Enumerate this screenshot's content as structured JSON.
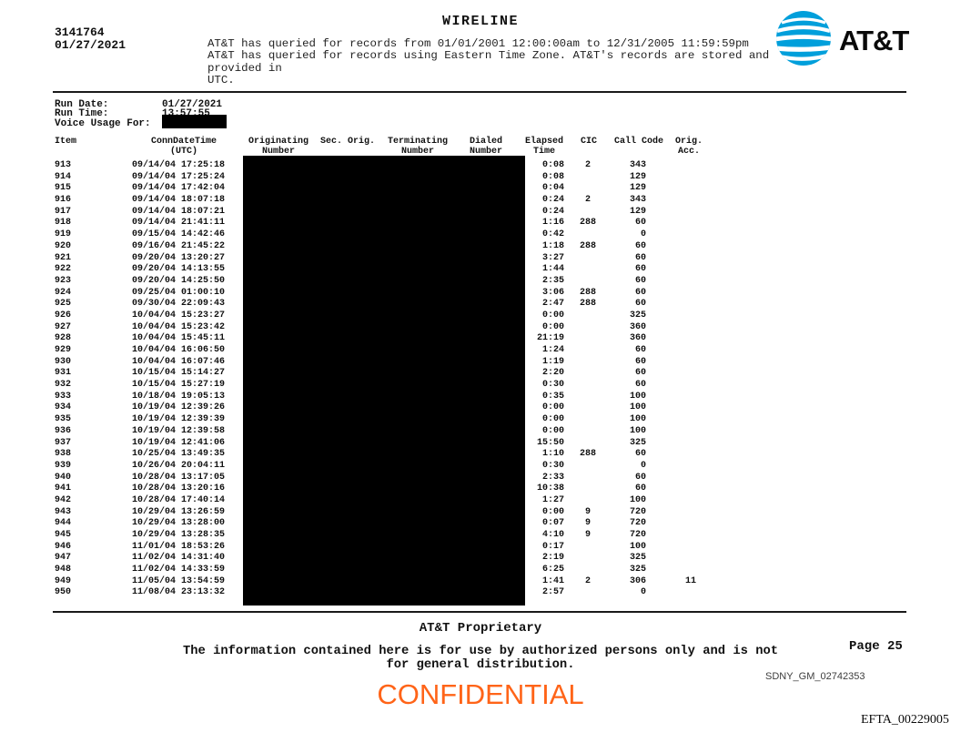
{
  "page": {
    "doc_number": "3141764",
    "doc_date": "01/27/2021",
    "title": "WIRELINE",
    "query_notice": "AT&T has queried for records from 01/01/2001 12:00:00am to 12/31/2005 11:59:59pm\nAT&T has queried for records using Eastern Time Zone. AT&T's records are stored and provided in\nUTC.",
    "logo_text": "AT&T"
  },
  "run_info": {
    "run_date_label": "Run Date:",
    "run_date": "01/27/2021",
    "run_time_label": "Run Time:",
    "run_time": "13:57:55",
    "voice_usage_label": "Voice Usage For:",
    "voice_usage_value": "[REDACTED]"
  },
  "table": {
    "headers": {
      "item": "Item",
      "conn": "ConnDateTime\n(UTC)",
      "originating": "Originating\nNumber",
      "sec_orig": "Sec. Orig.",
      "terminating": "Terminating\nNumber",
      "dialed": "Dialed\nNumber",
      "elapsed": "Elapsed\nTime",
      "cic": "CIC",
      "call_code": "Call Code",
      "orig_acc": "Orig.\nAcc."
    },
    "rows": [
      [
        "913",
        "09/14/04 17:25:18",
        "0:08",
        "2",
        "343",
        ""
      ],
      [
        "914",
        "09/14/04 17:25:24",
        "0:08",
        "",
        "129",
        ""
      ],
      [
        "915",
        "09/14/04 17:42:04",
        "0:04",
        "",
        "129",
        ""
      ],
      [
        "916",
        "09/14/04 18:07:18",
        "0:24",
        "2",
        "343",
        ""
      ],
      [
        "917",
        "09/14/04 18:07:21",
        "0:24",
        "",
        "129",
        ""
      ],
      [
        "918",
        "09/14/04 21:41:11",
        "1:16",
        "288",
        "60",
        ""
      ],
      [
        "919",
        "09/15/04 14:42:46",
        "0:42",
        "",
        "0",
        ""
      ],
      [
        "920",
        "09/16/04 21:45:22",
        "1:18",
        "288",
        "60",
        ""
      ],
      [
        "921",
        "09/20/04 13:20:27",
        "3:27",
        "",
        "60",
        ""
      ],
      [
        "922",
        "09/20/04 14:13:55",
        "1:44",
        "",
        "60",
        ""
      ],
      [
        "923",
        "09/20/04 14:25:50",
        "2:35",
        "",
        "60",
        ""
      ],
      [
        "924",
        "09/25/04 01:00:10",
        "3:06",
        "288",
        "60",
        ""
      ],
      [
        "925",
        "09/30/04 22:09:43",
        "2:47",
        "288",
        "60",
        ""
      ],
      [
        "926",
        "10/04/04 15:23:27",
        "0:00",
        "",
        "325",
        ""
      ],
      [
        "927",
        "10/04/04 15:23:42",
        "0:00",
        "",
        "360",
        ""
      ],
      [
        "928",
        "10/04/04 15:45:11",
        "21:19",
        "",
        "360",
        ""
      ],
      [
        "929",
        "10/04/04 16:06:50",
        "1:24",
        "",
        "60",
        ""
      ],
      [
        "930",
        "10/04/04 16:07:46",
        "1:19",
        "",
        "60",
        ""
      ],
      [
        "931",
        "10/15/04 15:14:27",
        "2:20",
        "",
        "60",
        ""
      ],
      [
        "932",
        "10/15/04 15:27:19",
        "0:30",
        "",
        "60",
        ""
      ],
      [
        "933",
        "10/18/04 19:05:13",
        "0:35",
        "",
        "100",
        ""
      ],
      [
        "934",
        "10/19/04 12:39:26",
        "0:00",
        "",
        "100",
        ""
      ],
      [
        "935",
        "10/19/04 12:39:39",
        "0:00",
        "",
        "100",
        ""
      ],
      [
        "936",
        "10/19/04 12:39:58",
        "0:00",
        "",
        "100",
        ""
      ],
      [
        "937",
        "10/19/04 12:41:06",
        "15:50",
        "",
        "325",
        ""
      ],
      [
        "938",
        "10/25/04 13:49:35",
        "1:10",
        "288",
        "60",
        ""
      ],
      [
        "939",
        "10/26/04 20:04:11",
        "0:30",
        "",
        "0",
        ""
      ],
      [
        "940",
        "10/28/04 13:17:05",
        "2:33",
        "",
        "60",
        ""
      ],
      [
        "941",
        "10/28/04 13:20:16",
        "10:38",
        "",
        "60",
        ""
      ],
      [
        "942",
        "10/28/04 17:40:14",
        "1:27",
        "",
        "100",
        ""
      ],
      [
        "943",
        "10/29/04 13:26:59",
        "0:00",
        "9",
        "720",
        ""
      ],
      [
        "944",
        "10/29/04 13:28:00",
        "0:07",
        "9",
        "720",
        ""
      ],
      [
        "945",
        "10/29/04 13:28:35",
        "4:10",
        "9",
        "720",
        ""
      ],
      [
        "946",
        "11/01/04 18:53:26",
        "0:17",
        "",
        "100",
        ""
      ],
      [
        "947",
        "11/02/04 14:31:40",
        "2:19",
        "",
        "325",
        ""
      ],
      [
        "948",
        "11/02/04 14:33:59",
        "6:25",
        "",
        "325",
        ""
      ],
      [
        "949",
        "11/05/04 13:54:59",
        "1:41",
        "2",
        "306",
        "11"
      ],
      [
        "950",
        "11/08/04 23:13:32",
        "2:57",
        "",
        "0",
        ""
      ]
    ]
  },
  "footer": {
    "proprietary": "AT&T Proprietary",
    "distribution_notice": "The information contained here is for use by authorized persons only and is not\nfor general distribution.",
    "page_label": "Page 25",
    "bates_sdny": "SDNY_GM_02742353",
    "confidential_stamp": "CONFIDENTIAL",
    "bates_efta": "EFTA_00229005"
  },
  "colors": {
    "confidential_orange": "#FF6418",
    "att_blue": "#009FDB",
    "redaction_black": "#000000"
  }
}
